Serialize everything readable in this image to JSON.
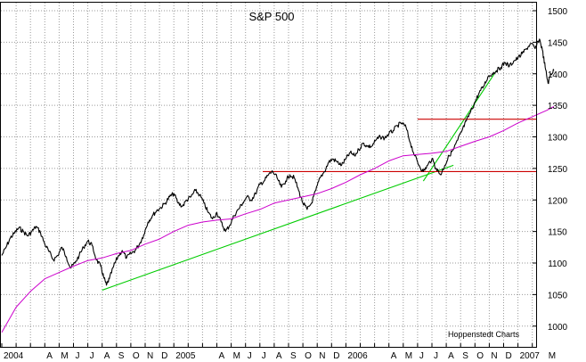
{
  "chart_data": {
    "type": "line",
    "title": "S&P 500",
    "credit": "Hoppenstedt Charts",
    "xlabel": "",
    "ylabel": "",
    "ylim": [
      950,
      1500
    ],
    "y_ticks": [
      1000,
      1050,
      1100,
      1150,
      1200,
      1250,
      1300,
      1350,
      1400,
      1450,
      1500
    ],
    "x_range": [
      "2004-01",
      "2007-03"
    ],
    "x_axis_labels": [
      {
        "text": "2004",
        "m": 0
      },
      {
        "text": "A",
        "m": 3
      },
      {
        "text": "M",
        "m": 4
      },
      {
        "text": "J",
        "m": 5
      },
      {
        "text": "J",
        "m": 6
      },
      {
        "text": "A",
        "m": 7
      },
      {
        "text": "S",
        "m": 8
      },
      {
        "text": "O",
        "m": 9
      },
      {
        "text": "N",
        "m": 10
      },
      {
        "text": "D",
        "m": 11
      },
      {
        "text": "2005",
        "m": 12
      },
      {
        "text": "A",
        "m": 15
      },
      {
        "text": "M",
        "m": 16
      },
      {
        "text": "J",
        "m": 17
      },
      {
        "text": "J",
        "m": 18
      },
      {
        "text": "A",
        "m": 19
      },
      {
        "text": "S",
        "m": 20
      },
      {
        "text": "O",
        "m": 21
      },
      {
        "text": "N",
        "m": 22
      },
      {
        "text": "D",
        "m": 23
      },
      {
        "text": "2006",
        "m": 24
      },
      {
        "text": "A",
        "m": 27
      },
      {
        "text": "M",
        "m": 28
      },
      {
        "text": "J",
        "m": 29
      },
      {
        "text": "J",
        "m": 30
      },
      {
        "text": "A",
        "m": 31
      },
      {
        "text": "S",
        "m": 32
      },
      {
        "text": "O",
        "m": 33
      },
      {
        "text": "N",
        "m": 34
      },
      {
        "text": "D",
        "m": 35
      },
      {
        "text": "2007",
        "m": 36
      },
      {
        "text": "M",
        "m": 38
      }
    ],
    "grid": true,
    "series": [
      {
        "color": "#000000",
        "style": "daily-close",
        "points": [
          [
            0.0,
            1112
          ],
          [
            0.3,
            1125
          ],
          [
            0.6,
            1140
          ],
          [
            0.9,
            1148
          ],
          [
            1.2,
            1156
          ],
          [
            1.5,
            1150
          ],
          [
            1.8,
            1143
          ],
          [
            2.1,
            1150
          ],
          [
            2.4,
            1158
          ],
          [
            2.7,
            1148
          ],
          [
            3.0,
            1130
          ],
          [
            3.3,
            1118
          ],
          [
            3.6,
            1105
          ],
          [
            3.9,
            1112
          ],
          [
            4.2,
            1125
          ],
          [
            4.5,
            1110
          ],
          [
            4.8,
            1092
          ],
          [
            5.1,
            1100
          ],
          [
            5.4,
            1112
          ],
          [
            5.7,
            1125
          ],
          [
            6.0,
            1135
          ],
          [
            6.3,
            1128
          ],
          [
            6.6,
            1105
          ],
          [
            6.9,
            1095
          ],
          [
            7.1,
            1078
          ],
          [
            7.3,
            1065
          ],
          [
            7.5,
            1075
          ],
          [
            7.8,
            1095
          ],
          [
            8.1,
            1110
          ],
          [
            8.4,
            1120
          ],
          [
            8.7,
            1108
          ],
          [
            9.0,
            1115
          ],
          [
            9.3,
            1120
          ],
          [
            9.6,
            1130
          ],
          [
            9.9,
            1145
          ],
          [
            10.2,
            1165
          ],
          [
            10.5,
            1175
          ],
          [
            10.8,
            1183
          ],
          [
            11.1,
            1188
          ],
          [
            11.4,
            1195
          ],
          [
            11.7,
            1205
          ],
          [
            12.0,
            1210
          ],
          [
            12.3,
            1195
          ],
          [
            12.6,
            1190
          ],
          [
            12.9,
            1200
          ],
          [
            13.2,
            1205
          ],
          [
            13.5,
            1215
          ],
          [
            13.8,
            1208
          ],
          [
            14.1,
            1195
          ],
          [
            14.4,
            1180
          ],
          [
            14.7,
            1170
          ],
          [
            15.0,
            1180
          ],
          [
            15.3,
            1165
          ],
          [
            15.6,
            1150
          ],
          [
            15.9,
            1160
          ],
          [
            16.2,
            1175
          ],
          [
            16.5,
            1185
          ],
          [
            16.8,
            1195
          ],
          [
            17.1,
            1205
          ],
          [
            17.4,
            1200
          ],
          [
            17.7,
            1210
          ],
          [
            18.0,
            1225
          ],
          [
            18.3,
            1230
          ],
          [
            18.6,
            1240
          ],
          [
            18.9,
            1245
          ],
          [
            19.2,
            1235
          ],
          [
            19.5,
            1220
          ],
          [
            19.8,
            1230
          ],
          [
            20.1,
            1240
          ],
          [
            20.4,
            1235
          ],
          [
            20.7,
            1215
          ],
          [
            21.0,
            1195
          ],
          [
            21.3,
            1185
          ],
          [
            21.6,
            1195
          ],
          [
            21.9,
            1215
          ],
          [
            22.2,
            1235
          ],
          [
            22.5,
            1245
          ],
          [
            22.8,
            1260
          ],
          [
            23.1,
            1265
          ],
          [
            23.4,
            1260
          ],
          [
            23.7,
            1255
          ],
          [
            24.0,
            1265
          ],
          [
            24.3,
            1275
          ],
          [
            24.6,
            1270
          ],
          [
            24.9,
            1280
          ],
          [
            25.2,
            1290
          ],
          [
            25.5,
            1285
          ],
          [
            25.8,
            1285
          ],
          [
            26.1,
            1295
          ],
          [
            26.4,
            1300
          ],
          [
            26.7,
            1298
          ],
          [
            27.0,
            1305
          ],
          [
            27.3,
            1310
          ],
          [
            27.6,
            1318
          ],
          [
            27.9,
            1322
          ],
          [
            28.2,
            1315
          ],
          [
            28.5,
            1290
          ],
          [
            28.8,
            1270
          ],
          [
            29.1,
            1255
          ],
          [
            29.4,
            1245
          ],
          [
            29.7,
            1255
          ],
          [
            30.0,
            1265
          ],
          [
            30.3,
            1250
          ],
          [
            30.6,
            1240
          ],
          [
            30.9,
            1255
          ],
          [
            31.2,
            1270
          ],
          [
            31.5,
            1280
          ],
          [
            31.8,
            1295
          ],
          [
            32.1,
            1310
          ],
          [
            32.4,
            1325
          ],
          [
            32.7,
            1340
          ],
          [
            33.0,
            1355
          ],
          [
            33.3,
            1370
          ],
          [
            33.6,
            1380
          ],
          [
            33.9,
            1395
          ],
          [
            34.2,
            1400
          ],
          [
            34.5,
            1405
          ],
          [
            34.8,
            1410
          ],
          [
            35.1,
            1418
          ],
          [
            35.4,
            1412
          ],
          [
            35.7,
            1420
          ],
          [
            36.0,
            1425
          ],
          [
            36.3,
            1432
          ],
          [
            36.6,
            1440
          ],
          [
            36.9,
            1448
          ],
          [
            37.2,
            1440
          ],
          [
            37.5,
            1455
          ],
          [
            37.7,
            1438
          ],
          [
            37.9,
            1410
          ],
          [
            38.1,
            1385
          ],
          [
            38.3,
            1400
          ],
          [
            38.5,
            1405
          ]
        ]
      },
      {
        "color": "#cc00cc",
        "style": "moving-average",
        "points": [
          [
            0.0,
            990
          ],
          [
            1.0,
            1030
          ],
          [
            2.0,
            1055
          ],
          [
            3.0,
            1075
          ],
          [
            4.0,
            1085
          ],
          [
            5.0,
            1095
          ],
          [
            6.0,
            1104
          ],
          [
            7.0,
            1108
          ],
          [
            8.0,
            1115
          ],
          [
            9.0,
            1120
          ],
          [
            10.0,
            1130
          ],
          [
            11.0,
            1138
          ],
          [
            12.0,
            1150
          ],
          [
            13.0,
            1160
          ],
          [
            14.0,
            1165
          ],
          [
            15.0,
            1168
          ],
          [
            16.0,
            1170
          ],
          [
            17.0,
            1178
          ],
          [
            18.0,
            1185
          ],
          [
            19.0,
            1195
          ],
          [
            20.0,
            1200
          ],
          [
            21.0,
            1205
          ],
          [
            22.0,
            1210
          ],
          [
            23.0,
            1218
          ],
          [
            24.0,
            1228
          ],
          [
            25.0,
            1240
          ],
          [
            26.0,
            1250
          ],
          [
            27.0,
            1262
          ],
          [
            28.0,
            1270
          ],
          [
            29.0,
            1272
          ],
          [
            30.0,
            1274
          ],
          [
            31.0,
            1277
          ],
          [
            32.0,
            1285
          ],
          [
            33.0,
            1293
          ],
          [
            34.0,
            1300
          ],
          [
            35.0,
            1310
          ],
          [
            36.0,
            1322
          ],
          [
            37.0,
            1332
          ],
          [
            38.0,
            1342
          ],
          [
            38.5,
            1348
          ]
        ]
      }
    ],
    "annotations": [
      {
        "kind": "trendline",
        "color": "#00cc00",
        "points": [
          [
            7.0,
            1057
          ],
          [
            31.5,
            1255
          ]
        ]
      },
      {
        "kind": "trendline",
        "color": "#00cc00",
        "points": [
          [
            29.4,
            1230
          ],
          [
            34.5,
            1405
          ]
        ]
      },
      {
        "kind": "hline",
        "color": "#cc0000",
        "y": 1245,
        "x_from": 18.2,
        "x_to": 39.0
      },
      {
        "kind": "hline",
        "color": "#cc0000",
        "y": 1328,
        "x_from": 29.0,
        "x_to": 39.0
      }
    ]
  }
}
